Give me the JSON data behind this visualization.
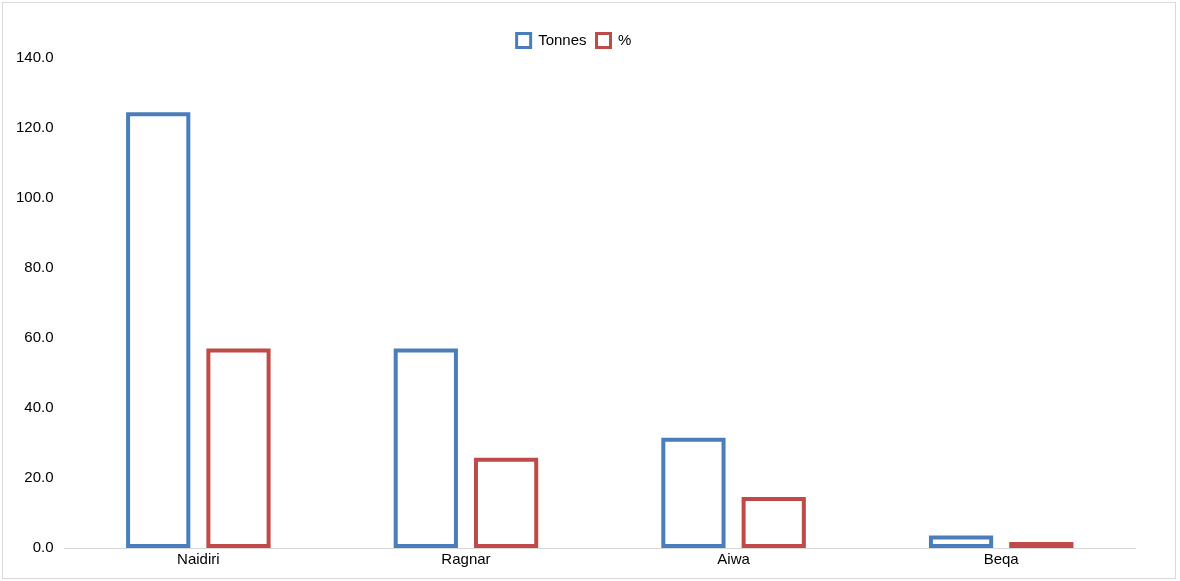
{
  "chart_data": {
    "type": "bar",
    "categories": [
      "Naidiri",
      "Ragnar",
      "Aiwa",
      "Beqa"
    ],
    "series": [
      {
        "name": "Tonnes",
        "color": "#4a7ebb",
        "values": [
          124.5,
          57,
          31.5,
          3.6
        ]
      },
      {
        "name": "%",
        "color": "#be4b48",
        "values": [
          57,
          25.8,
          14.6,
          1.7
        ]
      }
    ],
    "ylim": [
      0,
      140
    ],
    "yticks": [
      {
        "value": 0,
        "label": "0.0"
      },
      {
        "value": 20,
        "label": "20.0"
      },
      {
        "value": 40,
        "label": "40.0"
      },
      {
        "value": 60,
        "label": "60.0"
      },
      {
        "value": 80,
        "label": "80.0"
      },
      {
        "value": 100,
        "label": "100.0"
      },
      {
        "value": 120,
        "label": "120.0"
      },
      {
        "value": 140,
        "label": "140.0"
      }
    ],
    "grid": false,
    "legend": "top"
  }
}
